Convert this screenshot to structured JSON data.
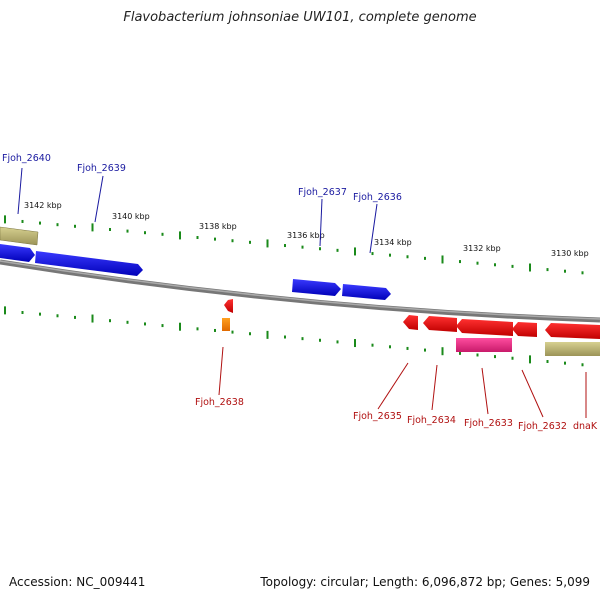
{
  "title": "Flavobacterium johnsoniae UW101, complete genome",
  "footer": {
    "accession": "Accession: NC_009441",
    "summary": "Topology: circular; Length: 6,096,872 bp; Genes: 5,099"
  },
  "scale_labels": [
    "3142 kbp",
    "3140 kbp",
    "3138 kbp",
    "3136 kbp",
    "3134 kbp",
    "3132 kbp",
    "3130 kbp"
  ],
  "genes_top": [
    "Fjoh_2640",
    "Fjoh_2639",
    "Fjoh_2637",
    "Fjoh_2636"
  ],
  "genes_bottom": [
    "Fjoh_2638",
    "Fjoh_2635",
    "Fjoh_2634",
    "Fjoh_2633",
    "Fjoh_2632",
    "dnaK"
  ],
  "colors": {
    "forward_cds": "#0000ee",
    "reverse_cds": "#ee0000",
    "rna_feature": "#ff8800",
    "pink_feature": "#e0207a",
    "khaki_feature": "#b8b070",
    "backbone": "#808080",
    "tick": "#1a8a1a",
    "top_label": "#1a1aa0",
    "bottom_label": "#b01010"
  }
}
